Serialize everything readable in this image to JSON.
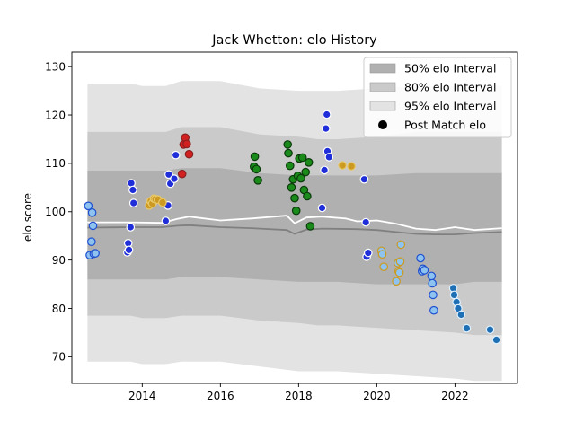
{
  "chart_data": {
    "type": "scatter",
    "title": "Jack Whetton: elo History",
    "xlabel": "",
    "ylabel": "elo score",
    "xlim": [
      2012.2,
      2023.6
    ],
    "ylim": [
      64.5,
      133
    ],
    "xticks": [
      2014,
      2016,
      2018,
      2020,
      2022
    ],
    "yticks": [
      70,
      80,
      90,
      100,
      110,
      120,
      130
    ],
    "grid": false,
    "legend_position": "top-right",
    "legend": [
      {
        "label": "50% elo Interval",
        "kind": "band",
        "color": "#b0b0b0"
      },
      {
        "label": "80% elo Interval",
        "kind": "band",
        "color": "#cacaca"
      },
      {
        "label": "95% elo Interval",
        "kind": "band",
        "color": "#e3e3e3"
      },
      {
        "label": "Post Match elo",
        "kind": "marker",
        "color": "#000000"
      }
    ],
    "bands": {
      "x": [
        2012.6,
        2013.7,
        2014.0,
        2014.6,
        2015.0,
        2016.0,
        2017.0,
        2018.0,
        2018.5,
        2019.0,
        2020.0,
        2021.0,
        2022.0,
        2022.5,
        2023.2
      ],
      "b95_upper": [
        126.5,
        126.5,
        126.0,
        126.0,
        127.0,
        127.0,
        125.5,
        125.0,
        125.0,
        125.0,
        125.5,
        126.0,
        126.0,
        126.5,
        126.0
      ],
      "b95_lower": [
        69.0,
        69.0,
        68.5,
        68.5,
        69.0,
        69.0,
        68.0,
        67.0,
        67.0,
        67.0,
        66.5,
        66.0,
        65.5,
        65.0,
        65.0
      ],
      "b80_upper": [
        116.5,
        116.5,
        116.5,
        116.5,
        117.5,
        117.5,
        116.0,
        115.5,
        115.0,
        115.0,
        115.5,
        116.5,
        116.5,
        116.5,
        116.5
      ],
      "b80_lower": [
        78.5,
        78.5,
        78.0,
        78.0,
        78.5,
        78.5,
        77.5,
        77.0,
        76.5,
        76.5,
        76.0,
        75.5,
        75.0,
        74.5,
        74.5
      ],
      "b50_upper": [
        108.5,
        108.5,
        108.5,
        108.5,
        109.0,
        109.0,
        108.0,
        107.5,
        107.5,
        107.5,
        107.5,
        108.0,
        108.0,
        108.0,
        108.0
      ],
      "b50_lower": [
        86.0,
        86.0,
        86.0,
        86.0,
        86.5,
        86.5,
        86.0,
        85.5,
        85.5,
        85.5,
        85.0,
        85.0,
        85.0,
        85.5,
        85.5
      ]
    },
    "median_line": {
      "color": "#808080",
      "x": [
        2012.6,
        2013.7,
        2014.5,
        2014.9,
        2015.2,
        2016.0,
        2016.8,
        2017.7,
        2017.9,
        2018.2,
        2018.6,
        2019.5,
        2020.0,
        2020.5,
        2021.0,
        2021.5,
        2022.0,
        2022.5,
        2023.2
      ],
      "y": [
        96.7,
        96.8,
        96.8,
        97.1,
        97.2,
        96.8,
        96.6,
        96.2,
        95.4,
        96.3,
        96.5,
        96.4,
        96.2,
        95.8,
        95.4,
        95.3,
        95.3,
        95.6,
        95.8
      ]
    },
    "mean_line": {
      "color": "#ffffff",
      "x": [
        2012.6,
        2013.7,
        2014.5,
        2014.9,
        2015.2,
        2016.0,
        2016.8,
        2017.7,
        2017.9,
        2018.2,
        2018.6,
        2019.2,
        2019.5,
        2020.0,
        2020.5,
        2021.0,
        2021.5,
        2022.0,
        2022.5,
        2023.2
      ],
      "y": [
        97.8,
        97.8,
        97.7,
        98.5,
        99.0,
        98.2,
        98.6,
        99.2,
        97.6,
        98.8,
        99.0,
        98.6,
        98.0,
        98.2,
        97.5,
        96.5,
        96.2,
        96.8,
        96.2,
        96.6
      ]
    },
    "series": [
      {
        "fill": "#8ec3f0",
        "edge": "#1f4fd0",
        "x": [
          2012.62,
          2012.66,
          2012.7,
          2012.72,
          2012.74,
          2012.76,
          2012.8
        ],
        "y": [
          101.2,
          91.0,
          93.8,
          99.8,
          97.1,
          91.3,
          91.4
        ]
      },
      {
        "fill": "#1f2ed8",
        "edge": "#ffffff",
        "x": [
          2013.62,
          2013.64,
          2013.66,
          2013.7,
          2013.72,
          2013.76,
          2013.78,
          2014.6,
          2014.66,
          2014.68,
          2014.72,
          2014.82,
          2014.86
        ],
        "y": [
          91.6,
          93.5,
          92.1,
          96.8,
          105.9,
          104.5,
          101.8,
          98.1,
          101.3,
          107.7,
          105.8,
          106.8,
          111.7
        ]
      },
      {
        "fill": "#cc9a20",
        "edge": "#e8c86a",
        "x": [
          2014.18,
          2014.22,
          2014.26,
          2014.3,
          2014.34,
          2014.4,
          2014.52,
          2019.12,
          2019.35
        ],
        "y": [
          101.3,
          102.2,
          101.7,
          102.7,
          102.6,
          102.5,
          101.9,
          109.6,
          109.4
        ]
      },
      {
        "fill": "#d12020",
        "edge": "#8c2020",
        "x": [
          2015.02,
          2015.06,
          2015.1,
          2015.14,
          2015.2
        ],
        "y": [
          107.8,
          113.9,
          115.3,
          114.0,
          111.9
        ]
      },
      {
        "fill": "#1a8a1a",
        "edge": "#0b3a0b",
        "x": [
          2016.86,
          2016.88,
          2016.92,
          2016.96,
          2017.72,
          2017.74,
          2017.78,
          2017.82,
          2017.86,
          2017.9,
          2017.94,
          2017.98,
          2018.02,
          2018.06,
          2018.1,
          2018.14,
          2018.18,
          2018.22,
          2018.26,
          2018.3
        ],
        "y": [
          109.3,
          111.4,
          108.8,
          106.5,
          113.9,
          112.1,
          109.5,
          105.0,
          106.7,
          102.8,
          100.2,
          107.4,
          111.0,
          106.9,
          111.2,
          104.5,
          108.2,
          103.2,
          110.2,
          97.0
        ]
      },
      {
        "fill": "#1f2ed8",
        "edge": "#ffffff",
        "x": [
          2018.6,
          2018.66,
          2018.7,
          2018.72,
          2018.74,
          2018.78,
          2019.68,
          2019.72,
          2019.74,
          2019.78
        ],
        "y": [
          100.8,
          108.6,
          117.2,
          120.1,
          112.5,
          111.3,
          106.7,
          97.8,
          90.7,
          91.5
        ]
      },
      {
        "fill": "#8ec3f0",
        "edge": "#cc9a20",
        "x": [
          2020.12,
          2020.14,
          2020.18,
          2020.5,
          2020.54,
          2020.56,
          2020.58,
          2020.6,
          2020.62
        ],
        "y": [
          91.9,
          91.2,
          88.6,
          85.6,
          89.4,
          87.7,
          87.4,
          89.7,
          93.2
        ]
      },
      {
        "fill": "#8ec3f0",
        "edge": "#1f4fd0",
        "x": [
          2021.12,
          2021.16,
          2021.18,
          2021.22,
          2021.4,
          2021.42,
          2021.44,
          2021.46
        ],
        "y": [
          90.4,
          87.7,
          88.2,
          87.9,
          86.7,
          85.2,
          82.8,
          79.6
        ]
      },
      {
        "fill": "#1f6fb5",
        "edge": "#dff0ff",
        "x": [
          2021.96,
          2021.98,
          2022.04,
          2022.08,
          2022.16,
          2022.3,
          2022.9,
          2023.06
        ],
        "y": [
          84.2,
          82.8,
          81.3,
          80.0,
          78.7,
          75.9,
          75.6,
          73.5
        ]
      }
    ]
  }
}
